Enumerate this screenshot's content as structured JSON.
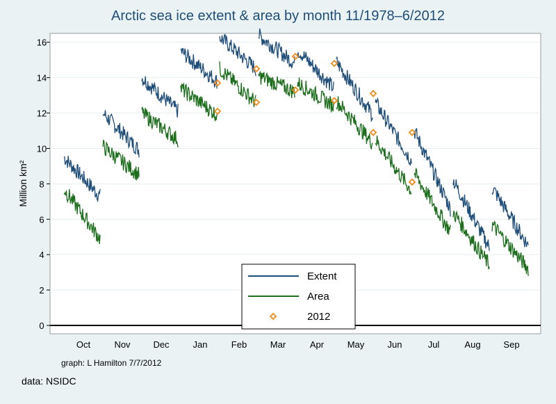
{
  "chart_data": {
    "type": "line",
    "title": "Arctic sea ice extent & area by month 11/1978–6/2012",
    "ylabel": "Million km²",
    "xlabel": "",
    "ylim": [
      0,
      16.5
    ],
    "yticks": [
      0,
      2,
      4,
      6,
      8,
      10,
      12,
      14,
      16
    ],
    "categories": [
      "Oct",
      "Nov",
      "Dec",
      "Jan",
      "Feb",
      "Mar",
      "Apr",
      "May",
      "Jun",
      "Jul",
      "Aug",
      "Sep"
    ],
    "series": [
      {
        "name": "Extent",
        "color": "#1f4e79",
        "ranges": [
          [
            9.5,
            7.3
          ],
          [
            12.0,
            9.9
          ],
          [
            14.0,
            12.1
          ],
          [
            15.5,
            13.8
          ],
          [
            16.3,
            14.5
          ],
          [
            16.4,
            14.8
          ],
          [
            15.6,
            13.4
          ],
          [
            14.9,
            11.9
          ],
          [
            12.6,
            9.3
          ],
          [
            11.0,
            6.6
          ],
          [
            8.2,
            4.4
          ],
          [
            7.8,
            4.5
          ]
        ]
      },
      {
        "name": "Area",
        "color": "#1d6e1d",
        "ranges": [
          [
            7.7,
            4.9
          ],
          [
            10.1,
            8.5
          ],
          [
            12.0,
            10.5
          ],
          [
            13.4,
            11.9
          ],
          [
            14.5,
            12.6
          ],
          [
            14.1,
            13.2
          ],
          [
            13.7,
            12.4
          ],
          [
            12.7,
            10.3
          ],
          [
            10.5,
            7.6
          ],
          [
            8.6,
            5.3
          ],
          [
            6.4,
            3.4
          ],
          [
            5.7,
            3.2
          ]
        ]
      },
      {
        "name": "2012",
        "color": "#f08a19",
        "points": [
          {
            "month": "Jan",
            "extent": 13.7,
            "area": 12.1
          },
          {
            "month": "Feb",
            "extent": 14.5,
            "area": 12.6
          },
          {
            "month": "Mar",
            "extent": 15.2,
            "area": 13.3
          },
          {
            "month": "Apr",
            "extent": 14.8,
            "area": 12.7
          },
          {
            "month": "May",
            "extent": 13.1,
            "area": 10.9
          },
          {
            "month": "Jun",
            "extent": 10.9,
            "area": 8.1
          }
        ]
      }
    ],
    "grid": true,
    "legend": "bottom-center"
  },
  "credit": "graph:  L Hamilton 7/7/2012",
  "source": "data:  NSIDC"
}
